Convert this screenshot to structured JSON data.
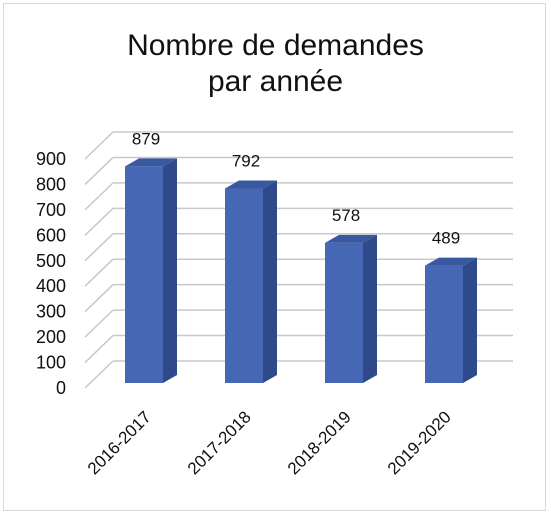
{
  "chart_data": {
    "type": "bar",
    "title_lines": [
      "Nombre de demandes",
      "par année"
    ],
    "categories": [
      "2016-2017",
      "2017-2018",
      "2018-2019",
      "2019-2020"
    ],
    "values": [
      879,
      792,
      578,
      489
    ],
    "ylim": [
      0,
      900
    ],
    "yticks": [
      "0",
      "100",
      "200",
      "300",
      "400",
      "500",
      "600",
      "700",
      "800",
      "900"
    ],
    "xlabel": "",
    "ylabel": "",
    "grid": true,
    "legend": "none",
    "style": "3d-bar",
    "colors": {
      "bar_front": "#4668b4",
      "bar_side": "#2e4a8a",
      "bar_top": "#3a58a0",
      "grid": "#c8c8c8",
      "text": "#111111"
    }
  }
}
